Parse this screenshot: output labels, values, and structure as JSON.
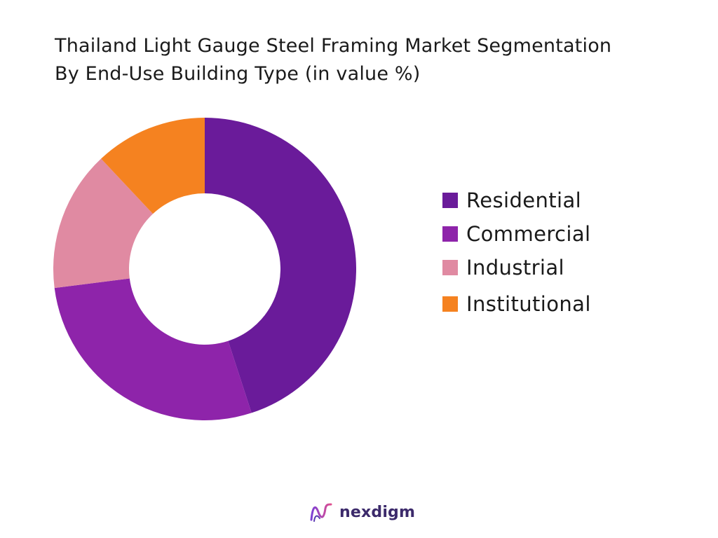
{
  "title_lines": [
    "Thailand Light Gauge Steel Framing Market Segmentation",
    "By End-Use Building Type (in value %)"
  ],
  "chart_data": {
    "type": "pie",
    "donut": true,
    "title": "Thailand Light Gauge Steel Framing Market Segmentation By End-Use Building Type (in value %)",
    "categories": [
      "Residential",
      "Commercial",
      "Industrial",
      "Institutional"
    ],
    "values": [
      45,
      28,
      15,
      12
    ],
    "colors": [
      "#6a1b9a",
      "#8e24aa",
      "#e08aa2",
      "#f58220"
    ],
    "legend_position": "right",
    "start_angle": "top, clockwise"
  },
  "brand": {
    "name": "nexdigm",
    "logo_icon": "nexdigm-logo-icon"
  }
}
